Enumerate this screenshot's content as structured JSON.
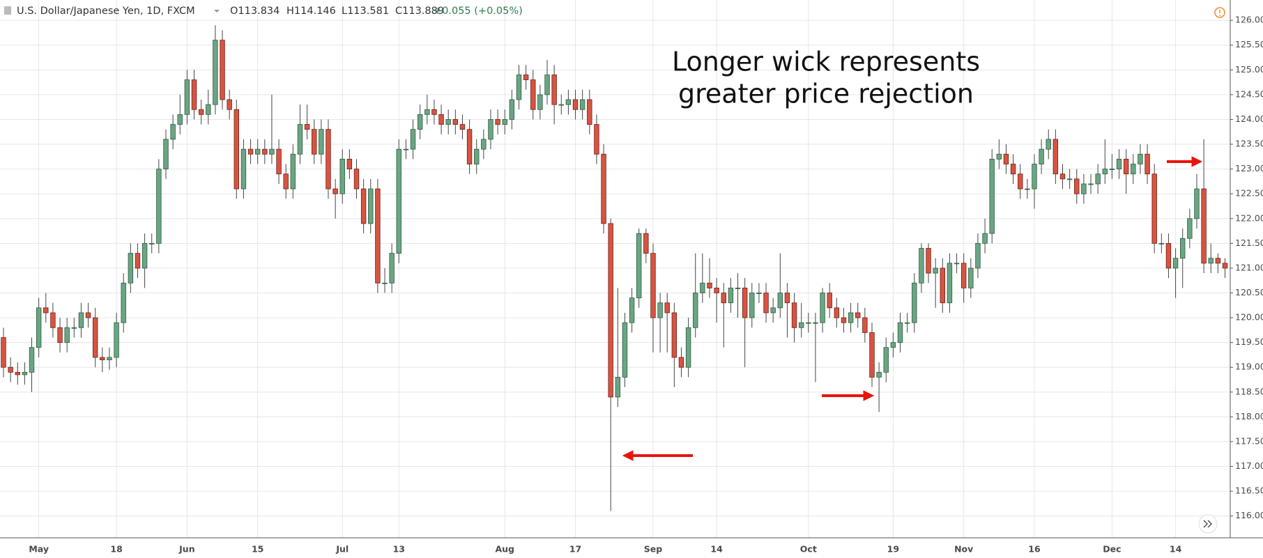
{
  "chart_data": {
    "type": "candlestick",
    "title": "U.S. Dollar/Japanese Yen, 1D, FXCM",
    "ohlc_readout": [
      "O113.834",
      "H114.146",
      "L113.581",
      "C113.889"
    ],
    "change": "+0.055 (+0.05%)",
    "annotations": [
      "Longer wick represents",
      "greater price rejection"
    ],
    "categories": [
      null,
      null,
      null,
      null,
      null,
      "May",
      null,
      null,
      null,
      null,
      null,
      null,
      null,
      null,
      null,
      null,
      "18",
      null,
      null,
      null,
      null,
      null,
      null,
      null,
      null,
      null,
      "Jun",
      null,
      null,
      null,
      null,
      null,
      null,
      null,
      null,
      null,
      "15",
      null,
      null,
      null,
      null,
      null,
      null,
      null,
      null,
      null,
      null,
      null,
      "Jul",
      null,
      null,
      null,
      null,
      null,
      null,
      null,
      "13",
      null,
      null,
      null,
      null,
      null,
      null,
      null,
      null,
      null,
      null,
      null,
      null,
      null,
      null,
      "Aug",
      null,
      null,
      null,
      null,
      null,
      null,
      null,
      null,
      null,
      "17",
      null,
      null,
      null,
      null,
      null,
      null,
      null,
      null,
      null,
      null,
      "Sep",
      null,
      null,
      null,
      null,
      null,
      null,
      null,
      null,
      "14",
      null,
      null,
      null,
      null,
      null,
      null,
      null,
      null,
      null,
      null,
      null,
      null,
      "Oct",
      null,
      null,
      null,
      null,
      null,
      null,
      null,
      null,
      null,
      null,
      null,
      "19",
      null,
      null,
      null,
      null,
      null,
      null,
      null,
      null,
      null,
      "Nov",
      null,
      null,
      null,
      null,
      null,
      null,
      null,
      null,
      null,
      "16",
      null,
      null,
      null,
      null,
      null,
      null,
      null,
      null,
      null,
      null,
      "Dec",
      null,
      null,
      null,
      null,
      null,
      null,
      null,
      null,
      "14",
      null,
      null,
      null,
      null,
      null,
      null,
      null
    ],
    "open": [
      119.6,
      119.0,
      118.9,
      118.85,
      118.9,
      119.4,
      120.2,
      120.1,
      119.8,
      119.5,
      119.8,
      119.8,
      120.1,
      120.0,
      119.2,
      119.15,
      119.2,
      119.9,
      120.7,
      121.3,
      121.0,
      121.5,
      121.5,
      123.0,
      123.6,
      123.9,
      124.1,
      124.8,
      124.2,
      124.1,
      124.3,
      125.6,
      124.4,
      124.2,
      122.6,
      123.4,
      123.3,
      123.4,
      123.3,
      123.4,
      122.9,
      122.6,
      123.3,
      123.9,
      123.8,
      123.3,
      123.8,
      122.6,
      122.5,
      123.2,
      123.0,
      122.6,
      121.9,
      122.6,
      120.7,
      120.7,
      121.3,
      123.4,
      123.4,
      123.8,
      124.1,
      124.2,
      124.1,
      123.9,
      124.0,
      123.9,
      123.8,
      123.1,
      123.4,
      123.6,
      124.0,
      123.9,
      124.0,
      124.4,
      124.9,
      124.8,
      124.2,
      124.5,
      124.9,
      124.3,
      124.3,
      124.4,
      124.2,
      124.4,
      123.9,
      123.3,
      121.9,
      118.4,
      118.8,
      119.9,
      120.4,
      121.7,
      121.3,
      120.0,
      120.3,
      120.1,
      119.2,
      119.0,
      119.8,
      120.5,
      120.7,
      120.6,
      120.5,
      120.3,
      120.6,
      120.6,
      120.0,
      120.5,
      120.5,
      120.1,
      120.2,
      120.5,
      120.3,
      119.8,
      119.9,
      119.9,
      119.9,
      120.5,
      120.2,
      120.0,
      119.9,
      120.1,
      120.0,
      119.7,
      118.8,
      118.9,
      119.4,
      119.5,
      119.9,
      119.9,
      120.7,
      121.4,
      120.9,
      121.0,
      120.3,
      121.1,
      121.1,
      120.6,
      121.0,
      121.5,
      121.7,
      123.2,
      123.3,
      123.1,
      122.9,
      122.6,
      122.6,
      123.1,
      123.4,
      123.6,
      122.9,
      122.8,
      122.8,
      122.5,
      122.7,
      122.7,
      122.9,
      123.0,
      123.0,
      123.2,
      122.9,
      123.1,
      123.3,
      122.9,
      121.5,
      121.5,
      121.0,
      121.2,
      121.6,
      122.0,
      122.6,
      121.1,
      121.2,
      121.1
    ],
    "high": [
      119.8,
      119.2,
      119.1,
      119.1,
      119.6,
      120.4,
      120.5,
      120.3,
      120.0,
      120.0,
      120.0,
      120.3,
      120.3,
      120.2,
      119.4,
      119.4,
      120.1,
      120.9,
      121.5,
      121.5,
      121.7,
      121.7,
      123.2,
      123.8,
      124.1,
      124.5,
      125.0,
      125.0,
      124.4,
      124.6,
      125.9,
      125.8,
      124.6,
      124.4,
      123.6,
      123.6,
      123.6,
      123.6,
      124.5,
      123.6,
      123.1,
      123.5,
      124.3,
      124.3,
      124.0,
      124.0,
      124.0,
      122.8,
      123.4,
      123.4,
      123.2,
      122.8,
      122.8,
      122.8,
      121.0,
      121.5,
      123.6,
      123.6,
      124.0,
      124.3,
      124.5,
      124.4,
      124.3,
      124.2,
      124.2,
      124.1,
      124.0,
      123.6,
      123.8,
      124.2,
      124.2,
      124.2,
      124.6,
      125.1,
      125.1,
      125.0,
      124.7,
      125.2,
      125.1,
      124.5,
      124.6,
      124.6,
      124.6,
      124.6,
      124.1,
      123.5,
      122.0,
      120.6,
      120.1,
      120.6,
      121.8,
      121.8,
      121.5,
      120.5,
      120.5,
      120.3,
      119.4,
      120.0,
      121.3,
      121.3,
      121.2,
      120.8,
      120.7,
      120.8,
      120.9,
      120.8,
      120.7,
      120.7,
      120.7,
      120.4,
      121.3,
      120.7,
      120.5,
      120.3,
      120.1,
      120.1,
      120.6,
      120.7,
      120.4,
      120.2,
      120.3,
      120.3,
      120.2,
      119.9,
      119.1,
      119.6,
      119.7,
      120.1,
      120.1,
      120.9,
      121.5,
      121.5,
      121.2,
      121.2,
      121.3,
      121.3,
      121.3,
      121.2,
      121.7,
      122.0,
      123.4,
      123.6,
      123.5,
      123.3,
      123.1,
      122.8,
      123.3,
      123.6,
      123.8,
      123.8,
      123.1,
      123.0,
      123.0,
      122.9,
      122.9,
      123.1,
      123.6,
      123.3,
      123.4,
      123.4,
      123.3,
      123.5,
      123.5,
      123.1,
      121.7,
      121.7,
      121.4,
      121.8,
      122.2,
      122.9,
      123.6,
      121.5,
      121.3,
      121.2
    ],
    "low": [
      118.8,
      118.7,
      118.65,
      118.65,
      118.5,
      119.2,
      119.9,
      119.6,
      119.3,
      119.3,
      119.6,
      119.6,
      119.8,
      119.0,
      118.9,
      118.95,
      119.0,
      119.7,
      120.5,
      120.8,
      120.6,
      121.3,
      121.3,
      122.8,
      123.4,
      123.7,
      123.9,
      124.0,
      123.9,
      123.9,
      124.1,
      124.2,
      124.0,
      122.4,
      122.4,
      123.1,
      123.1,
      123.1,
      123.1,
      122.7,
      122.4,
      122.4,
      123.1,
      123.6,
      123.1,
      123.1,
      122.4,
      122.0,
      122.3,
      122.8,
      122.4,
      121.7,
      121.7,
      120.5,
      120.5,
      120.5,
      121.1,
      123.2,
      123.2,
      123.6,
      123.9,
      123.9,
      123.7,
      123.7,
      123.7,
      123.6,
      122.9,
      122.9,
      123.2,
      123.4,
      123.7,
      123.7,
      123.8,
      124.2,
      124.6,
      124.0,
      124.0,
      124.3,
      123.9,
      124.1,
      124.1,
      124.0,
      124.0,
      123.7,
      123.1,
      121.7,
      116.1,
      118.2,
      118.6,
      119.7,
      120.2,
      121.1,
      119.3,
      119.3,
      119.3,
      118.6,
      118.8,
      118.8,
      119.6,
      120.3,
      120.4,
      119.9,
      119.4,
      120.1,
      120.0,
      119.0,
      119.8,
      120.3,
      119.9,
      119.9,
      120.0,
      119.6,
      119.5,
      119.6,
      119.7,
      118.7,
      119.7,
      120.0,
      119.8,
      119.7,
      119.7,
      119.8,
      119.5,
      118.6,
      118.1,
      118.7,
      119.2,
      119.3,
      119.7,
      119.7,
      120.5,
      120.7,
      120.2,
      120.1,
      120.1,
      120.9,
      120.3,
      120.4,
      120.8,
      121.3,
      121.5,
      123.0,
      122.9,
      122.7,
      122.4,
      122.4,
      122.2,
      122.9,
      123.2,
      122.7,
      122.6,
      122.6,
      122.3,
      122.3,
      122.5,
      122.5,
      122.7,
      122.8,
      122.8,
      122.5,
      122.7,
      122.9,
      122.7,
      121.3,
      121.3,
      120.8,
      120.4,
      120.6,
      121.4,
      121.8,
      120.9,
      120.9,
      120.9,
      120.8
    ],
    "close": [
      119.0,
      118.9,
      118.85,
      118.9,
      119.4,
      120.2,
      120.1,
      119.8,
      119.5,
      119.8,
      119.8,
      120.1,
      120.0,
      119.2,
      119.15,
      119.2,
      119.9,
      120.7,
      121.3,
      121.0,
      121.5,
      121.5,
      123.0,
      123.6,
      123.9,
      124.1,
      124.8,
      124.2,
      124.1,
      124.3,
      125.6,
      124.4,
      124.2,
      122.6,
      123.4,
      123.3,
      123.4,
      123.3,
      123.4,
      122.9,
      122.6,
      123.3,
      123.9,
      123.8,
      123.3,
      123.8,
      122.6,
      122.5,
      123.2,
      123.0,
      122.6,
      121.9,
      122.6,
      120.7,
      120.7,
      121.3,
      123.4,
      123.4,
      123.8,
      124.1,
      124.2,
      124.1,
      123.9,
      124.0,
      123.9,
      123.8,
      123.1,
      123.4,
      123.6,
      124.0,
      123.9,
      124.0,
      124.4,
      124.9,
      124.8,
      124.2,
      124.5,
      124.9,
      124.3,
      124.3,
      124.4,
      124.2,
      124.4,
      123.9,
      123.3,
      121.9,
      118.4,
      118.8,
      119.9,
      120.4,
      121.7,
      121.3,
      120.0,
      120.3,
      120.1,
      119.2,
      119.0,
      119.8,
      120.5,
      120.7,
      120.6,
      120.5,
      120.3,
      120.6,
      120.6,
      120.0,
      120.5,
      120.5,
      120.1,
      120.2,
      120.5,
      120.3,
      119.8,
      119.9,
      119.9,
      119.9,
      120.5,
      120.2,
      120.0,
      119.9,
      120.1,
      120.0,
      119.7,
      118.8,
      118.9,
      119.4,
      119.5,
      119.9,
      119.9,
      120.7,
      121.4,
      120.9,
      121.0,
      120.3,
      121.1,
      121.1,
      120.6,
      121.0,
      121.5,
      121.7,
      123.2,
      123.3,
      123.1,
      122.9,
      122.6,
      122.6,
      123.1,
      123.4,
      123.6,
      122.9,
      122.8,
      122.8,
      122.5,
      122.7,
      122.7,
      122.9,
      123.0,
      123.0,
      123.2,
      122.9,
      123.1,
      123.3,
      122.9,
      121.5,
      121.5,
      121.0,
      121.2,
      121.6,
      122.0,
      122.6,
      121.1,
      121.2,
      121.1,
      121.0
    ],
    "up_color": "#6ba583",
    "down_color": "#d75442",
    "ylim": [
      115.56,
      126.41
    ],
    "yticks": [
      {
        "value": 116,
        "label": "116.000"
      },
      {
        "value": 116.5,
        "label": "116.500"
      },
      {
        "value": 117,
        "label": "117.000"
      },
      {
        "value": 117.5,
        "label": "117.500"
      },
      {
        "value": 118,
        "label": "118.000"
      },
      {
        "value": 118.5,
        "label": "118.500"
      },
      {
        "value": 119,
        "label": "119.000"
      },
      {
        "value": 119.5,
        "label": "119.500"
      },
      {
        "value": 120,
        "label": "120.000"
      },
      {
        "value": 120.5,
        "label": "120.500"
      },
      {
        "value": 121,
        "label": "121.000"
      },
      {
        "value": 121.5,
        "label": "121.500"
      },
      {
        "value": 122,
        "label": "122.000"
      },
      {
        "value": 122.5,
        "label": "122.500"
      },
      {
        "value": 123,
        "label": "123.000"
      },
      {
        "value": 123.5,
        "label": "123.500"
      },
      {
        "value": 124,
        "label": "124.000"
      },
      {
        "value": 124.5,
        "label": "124.500"
      },
      {
        "value": 125,
        "label": "125.000"
      },
      {
        "value": 125.5,
        "label": "125.500"
      },
      {
        "value": 126,
        "label": "126.000"
      }
    ],
    "grid": true
  }
}
